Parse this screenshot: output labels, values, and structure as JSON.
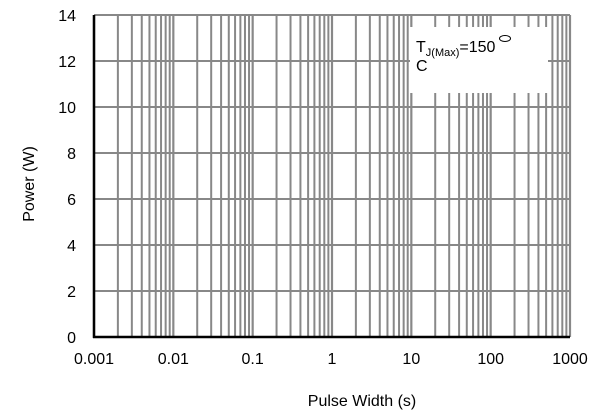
{
  "chart_data": {
    "type": "line",
    "title": "",
    "xlabel": "Pulse Width (s)",
    "ylabel": "Power (W)",
    "x_scale": "log",
    "xlim": [
      0.001,
      1000
    ],
    "ylim": [
      0,
      14
    ],
    "x_ticks": [
      "0.001",
      "0.01",
      "0.1",
      "1",
      "10",
      "100",
      "1000"
    ],
    "y_ticks": [
      "0",
      "2",
      "4",
      "6",
      "8",
      "10",
      "12",
      "14"
    ],
    "grid": true,
    "series": [],
    "legend": {
      "position": "top-right",
      "symbol": "T",
      "subscript": "J(Max)",
      "value_text": "=150",
      "unit_line": "C"
    }
  },
  "colors": {
    "grid": "#888888",
    "axis": "#000000",
    "background": "#ffffff"
  }
}
